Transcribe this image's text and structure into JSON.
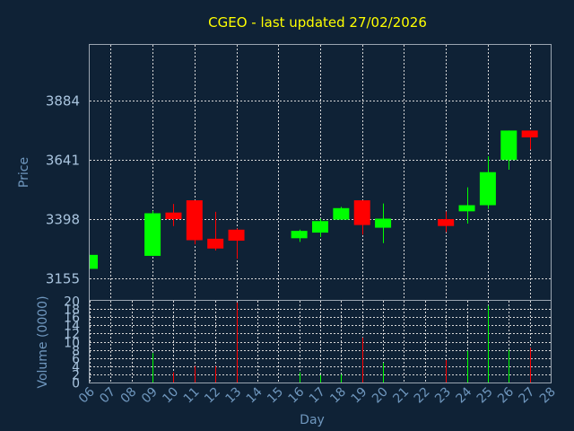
{
  "chart_data": {
    "type": "candlestick",
    "title": "CGEO - last updated 27/02/2026",
    "price_axis": {
      "label": "Price",
      "ticks": [
        3155,
        3398,
        3641,
        3884
      ],
      "range": [
        3068,
        4110
      ]
    },
    "volume_axis": {
      "label": "Volume (0000)",
      "ticks": [
        0,
        2,
        4,
        6,
        8,
        10,
        12,
        14,
        16,
        18,
        20
      ],
      "range": [
        0,
        20
      ]
    },
    "x_axis": {
      "label": "Day",
      "ticks": [
        "06",
        "07",
        "08",
        "09",
        "10",
        "11",
        "12",
        "13",
        "14",
        "15",
        "16",
        "17",
        "18",
        "19",
        "20",
        "21",
        "22",
        "23",
        "24",
        "25",
        "26",
        "27",
        "28"
      ]
    },
    "up_color": "#00ff00",
    "down_color": "#ff0000",
    "candles": [
      {
        "day": "06",
        "open": 3195,
        "high": 3252,
        "low": 3195,
        "close": 3252,
        "volume": 0
      },
      {
        "day": "09",
        "open": 3248,
        "high": 3432,
        "low": 3248,
        "close": 3422,
        "volume": 7.2
      },
      {
        "day": "10",
        "open": 3425,
        "high": 3460,
        "low": 3370,
        "close": 3398,
        "volume": 2.5
      },
      {
        "day": "11",
        "open": 3475,
        "high": 3475,
        "low": 3295,
        "close": 3312,
        "volume": 4
      },
      {
        "day": "12",
        "open": 3318,
        "high": 3428,
        "low": 3270,
        "close": 3278,
        "volume": 4
      },
      {
        "day": "13",
        "open": 3355,
        "high": 3360,
        "low": 3236,
        "close": 3310,
        "volume": 19.6
      },
      {
        "day": "16",
        "open": 3320,
        "high": 3355,
        "low": 3305,
        "close": 3350,
        "volume": 2.5
      },
      {
        "day": "17",
        "open": 3343,
        "high": 3400,
        "low": 3325,
        "close": 3390,
        "volume": 1.8
      },
      {
        "day": "18",
        "open": 3396,
        "high": 3448,
        "low": 3396,
        "close": 3443,
        "volume": 2
      },
      {
        "day": "19",
        "open": 3475,
        "high": 3475,
        "low": 3335,
        "close": 3374,
        "volume": 11
      },
      {
        "day": "20",
        "open": 3363,
        "high": 3462,
        "low": 3300,
        "close": 3400,
        "volume": 4.8
      },
      {
        "day": "23",
        "open": 3398,
        "high": 3430,
        "low": 3345,
        "close": 3370,
        "volume": 5.5
      },
      {
        "day": "24",
        "open": 3430,
        "high": 3528,
        "low": 3380,
        "close": 3455,
        "volume": 7.8
      },
      {
        "day": "25",
        "open": 3455,
        "high": 3655,
        "low": 3440,
        "close": 3590,
        "volume": 18.8
      },
      {
        "day": "26",
        "open": 3640,
        "high": 3760,
        "low": 3600,
        "close": 3760,
        "volume": 8
      },
      {
        "day": "27",
        "open": 3760,
        "high": 3760,
        "low": 3682,
        "close": 3732,
        "volume": 8.5
      }
    ]
  }
}
